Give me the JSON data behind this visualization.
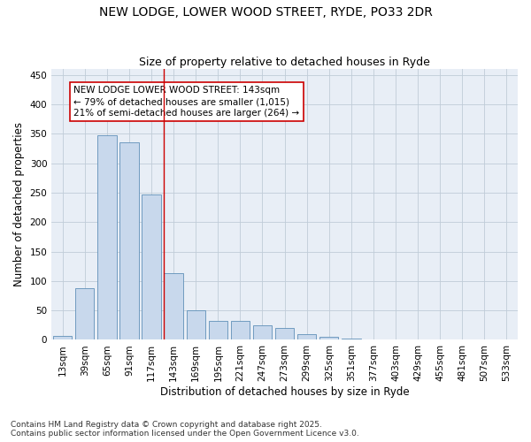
{
  "title_line1": "NEW LODGE, LOWER WOOD STREET, RYDE, PO33 2DR",
  "title_line2": "Size of property relative to detached houses in Ryde",
  "xlabel": "Distribution of detached houses by size in Ryde",
  "ylabel": "Number of detached properties",
  "categories": [
    "13sqm",
    "39sqm",
    "65sqm",
    "91sqm",
    "117sqm",
    "143sqm",
    "169sqm",
    "195sqm",
    "221sqm",
    "247sqm",
    "273sqm",
    "299sqm",
    "325sqm",
    "351sqm",
    "377sqm",
    "403sqm",
    "429sqm",
    "455sqm",
    "481sqm",
    "507sqm",
    "533sqm"
  ],
  "values": [
    6,
    88,
    348,
    335,
    247,
    113,
    50,
    32,
    32,
    25,
    20,
    10,
    5,
    2,
    1,
    1,
    1,
    0,
    0,
    0,
    0
  ],
  "bar_color": "#c8d8ec",
  "bar_edge_color": "#6090b8",
  "reference_line_color": "#cc0000",
  "reference_bar_index": 5,
  "annotation_text": "NEW LODGE LOWER WOOD STREET: 143sqm\n← 79% of detached houses are smaller (1,015)\n21% of semi-detached houses are larger (264) →",
  "annotation_box_color": "white",
  "annotation_box_edge_color": "#cc0000",
  "ylim": [
    0,
    460
  ],
  "yticks": [
    0,
    50,
    100,
    150,
    200,
    250,
    300,
    350,
    400,
    450
  ],
  "grid_color": "#c0ccd8",
  "background_color": "#e8eef6",
  "footer_text": "Contains HM Land Registry data © Crown copyright and database right 2025.\nContains public sector information licensed under the Open Government Licence v3.0.",
  "title_fontsize": 10,
  "subtitle_fontsize": 9,
  "axis_label_fontsize": 8.5,
  "tick_fontsize": 7.5,
  "annotation_fontsize": 7.5,
  "footer_fontsize": 6.5
}
